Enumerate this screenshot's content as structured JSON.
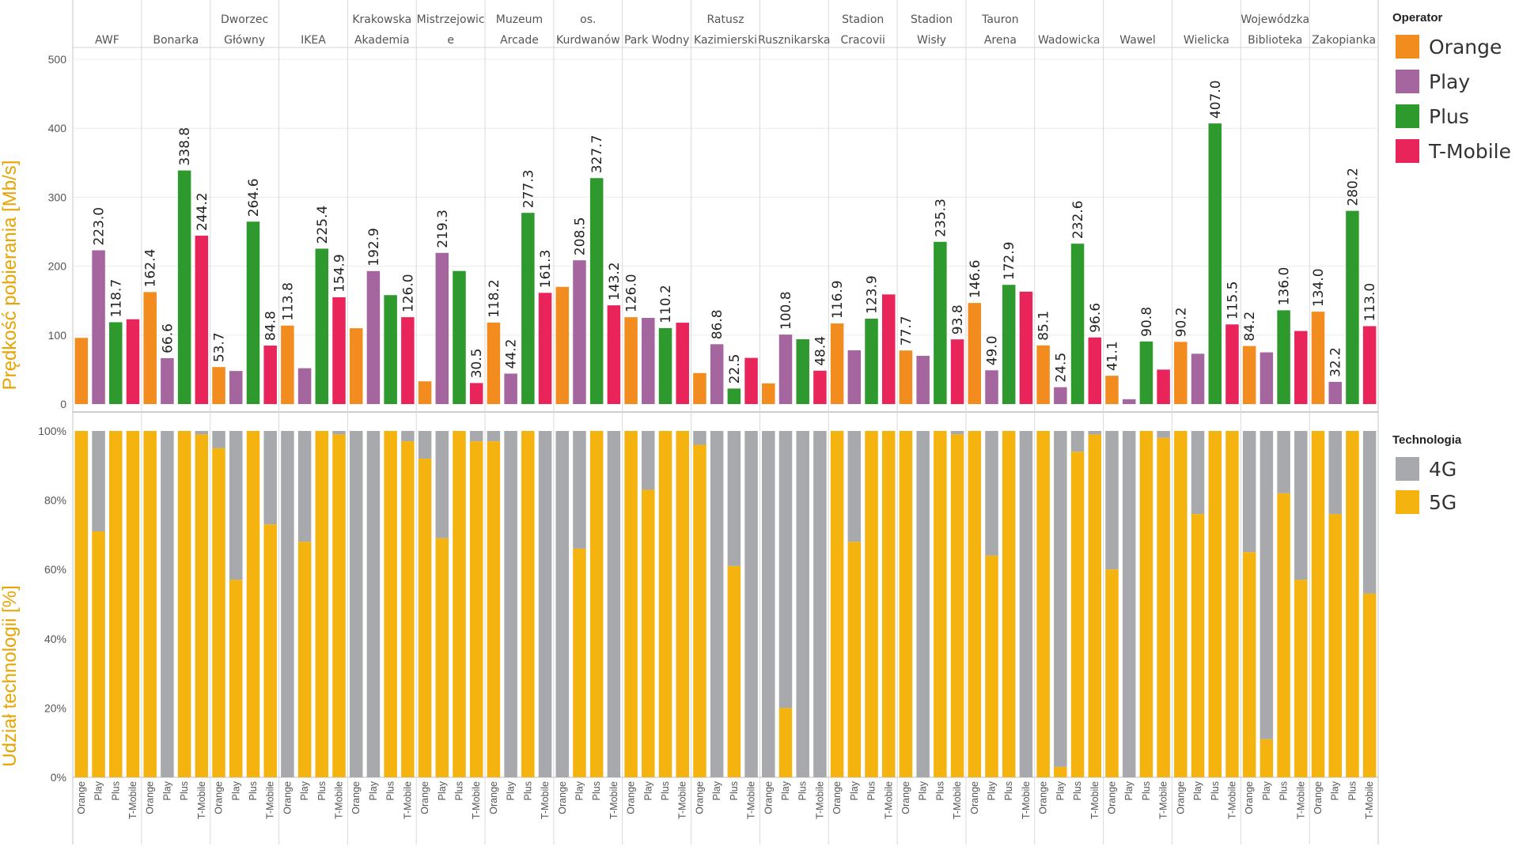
{
  "chart_data": [
    {
      "type": "bar",
      "ylabel": "Prędkość pobierania [Mb/s]",
      "ylim": [
        0,
        500
      ],
      "yticks": [
        "0",
        "100",
        "200",
        "300",
        "400",
        "500"
      ],
      "grid": true,
      "categories": [
        "AWF",
        "Bonarka",
        "Dworzec Główny",
        "IKEA",
        "Krakowska Akademia",
        "Mistrzejowice",
        "Muzeum Arcade",
        "os. Kurdwanów",
        "Park Wodny",
        "Ratusz Kazimierski",
        "Rusznikarska",
        "Stadion Cracovii",
        "Stadion Wisły",
        "Tauron Arena",
        "Wadowicka",
        "Wawel",
        "Wielicka",
        "Wojewódzka Biblioteka",
        "Zakopianka"
      ],
      "category_lines": [
        [
          "AWF"
        ],
        [
          "Bonarka"
        ],
        [
          "Dworzec",
          "Główny"
        ],
        [
          "IKEA"
        ],
        [
          "Krakowska",
          "Akademia"
        ],
        [
          "Mistrzejowic",
          "e"
        ],
        [
          "Muzeum",
          "Arcade"
        ],
        [
          "os.",
          "Kurdwanów"
        ],
        [
          "Park Wodny"
        ],
        [
          "Ratusz",
          "Kazimierski"
        ],
        [
          "Rusznikarska"
        ],
        [
          "Stadion",
          "Cracovii"
        ],
        [
          "Stadion",
          "Wisły"
        ],
        [
          "Tauron",
          "Arena"
        ],
        [
          "Wadowicka"
        ],
        [
          "Wawel"
        ],
        [
          "Wielicka"
        ],
        [
          "Wojewódzka",
          "Biblioteka"
        ],
        [
          "Zakopianka"
        ]
      ],
      "series": [
        {
          "name": "Orange",
          "color": "#f28c1f",
          "values": [
            96,
            162.4,
            53.7,
            113.8,
            110,
            33,
            118.2,
            170,
            126.0,
            45,
            30,
            116.9,
            77.7,
            146.6,
            85.1,
            41.1,
            90.2,
            84.2,
            134.0
          ],
          "labels": [
            "",
            "162.4",
            "53.7",
            "113.8",
            "",
            "",
            "118.2",
            "",
            "126.0",
            "",
            "",
            "116.9",
            "77.7",
            "146.6",
            "85.1",
            "41.1",
            "90.2",
            "84.2",
            "134.0"
          ]
        },
        {
          "name": "Play",
          "color": "#a5669f",
          "values": [
            223.0,
            66.6,
            48,
            52,
            192.9,
            219.3,
            44.2,
            208.5,
            125,
            86.8,
            100.8,
            78,
            70,
            49.0,
            24.5,
            7,
            73,
            75,
            32.2
          ],
          "labels": [
            "223.0",
            "66.6",
            "",
            "",
            "192.9",
            "219.3",
            "44.2",
            "208.5",
            "",
            "86.8",
            "100.8",
            "",
            "",
            "49.0",
            "24.5",
            "",
            "",
            "",
            "32.2"
          ]
        },
        {
          "name": "Plus",
          "color": "#2e9a2e",
          "values": [
            118.7,
            338.8,
            264.6,
            225.4,
            158,
            193,
            277.3,
            327.7,
            110.2,
            22.5,
            94,
            123.9,
            235.3,
            172.9,
            232.6,
            90.8,
            407.0,
            136.0,
            280.2
          ],
          "labels": [
            "118.7",
            "338.8",
            "264.6",
            "225.4",
            "",
            "",
            "277.3",
            "327.7",
            "110.2",
            "22.5",
            "",
            "123.9",
            "235.3",
            "172.9",
            "232.6",
            "90.8",
            "407.0",
            "136.0",
            "280.2"
          ]
        },
        {
          "name": "T-Mobile",
          "color": "#e8245b",
          "values": [
            123,
            244.2,
            84.8,
            154.9,
            126.0,
            30.5,
            161.3,
            143.2,
            118,
            67,
            48.4,
            159,
            93.8,
            163,
            96.6,
            50,
            115.5,
            106,
            113.0
          ],
          "labels": [
            "",
            "244.2",
            "84.8",
            "154.9",
            "126.0",
            "30.5",
            "161.3",
            "143.2",
            "",
            "",
            "48.4",
            "",
            "93.8",
            "",
            "96.6",
            "",
            "115.5",
            "",
            "113.0"
          ]
        }
      ]
    },
    {
      "type": "bar",
      "stacked": true,
      "ylabel": "Udział technologii [%]",
      "ylim": [
        0,
        100
      ],
      "yticks": [
        "0%",
        "20%",
        "40%",
        "60%",
        "80%",
        "100%"
      ],
      "x_tick_labels": [
        "Orange",
        "Play",
        "Plus",
        "T-Mobile"
      ],
      "series": [
        {
          "name": "5G",
          "color": "#f5b30f",
          "values": {
            "Orange": [
              100,
              100,
              95,
              0,
              0,
              92,
              97,
              0,
              100,
              96,
              0,
              100,
              100,
              100,
              100,
              60,
              100,
              65,
              100
            ],
            "Play": [
              71,
              0,
              57,
              68,
              0,
              69,
              0,
              66,
              83,
              0,
              20,
              68,
              0,
              64,
              3,
              0,
              76,
              11,
              76
            ],
            "Plus": [
              100,
              100,
              100,
              100,
              100,
              100,
              100,
              100,
              100,
              61,
              0,
              100,
              100,
              100,
              94,
              100,
              100,
              82,
              100
            ],
            "T-Mobile": [
              100,
              99,
              73,
              99,
              97,
              97,
              0,
              0,
              100,
              0,
              0,
              100,
              99,
              0,
              99,
              98,
              100,
              57,
              53
            ]
          }
        },
        {
          "name": "4G",
          "color": "#a8a9ac"
        }
      ]
    }
  ],
  "legend_operator": {
    "title": "Operator",
    "items": [
      "Orange",
      "Play",
      "Plus",
      "T-Mobile"
    ]
  },
  "legend_technology": {
    "title": "Technologia",
    "items": [
      "4G",
      "5G"
    ]
  }
}
